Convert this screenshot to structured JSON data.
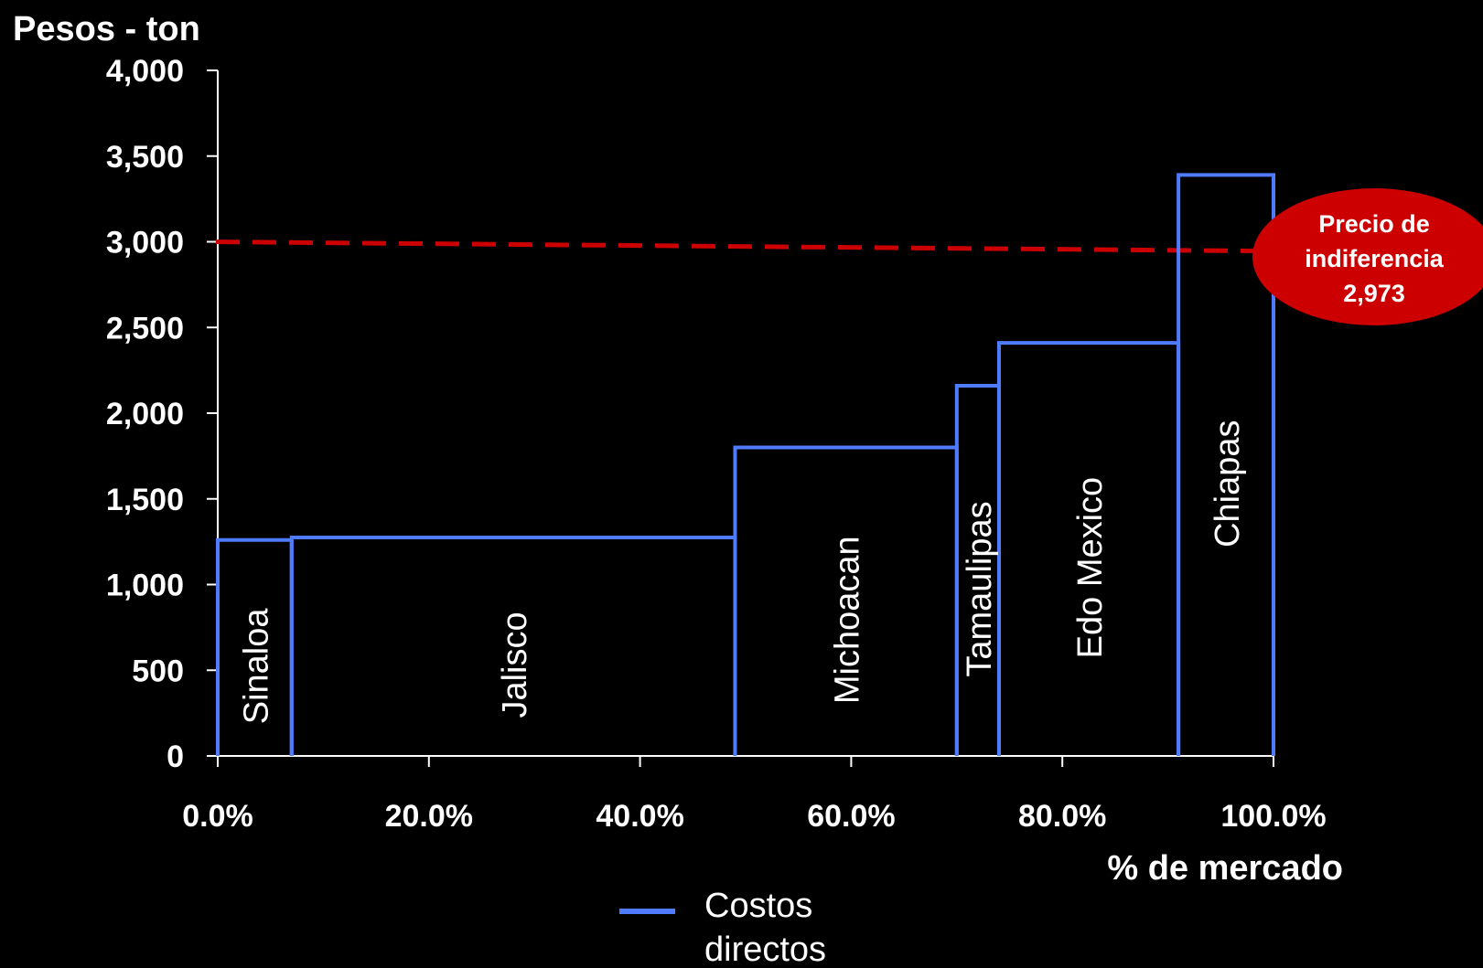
{
  "chart_data": {
    "type": "step",
    "ylabel": "Pesos - ton",
    "xlabel": "% de mercado",
    "ylim": [
      0,
      4000
    ],
    "xlim": [
      0,
      100
    ],
    "y_ticks": [
      {
        "value": 0,
        "label": "0"
      },
      {
        "value": 500,
        "label": "500"
      },
      {
        "value": 1000,
        "label": "1,000"
      },
      {
        "value": 1500,
        "label": "1,500"
      },
      {
        "value": 2000,
        "label": "2,000"
      },
      {
        "value": 2500,
        "label": "2,500"
      },
      {
        "value": 3000,
        "label": "3,000"
      },
      {
        "value": 3500,
        "label": "3,500"
      },
      {
        "value": 4000,
        "label": "4,000"
      }
    ],
    "x_ticks": [
      {
        "value": 0,
        "label": "0.0%"
      },
      {
        "value": 20,
        "label": "20.0%"
      },
      {
        "value": 40,
        "label": "40.0%"
      },
      {
        "value": 60,
        "label": "60.0%"
      },
      {
        "value": 80,
        "label": "80.0%"
      },
      {
        "value": 100,
        "label": "100.0%"
      }
    ],
    "series": [
      {
        "name": "Costos directos",
        "color": "#4f7cff",
        "segments": [
          {
            "label": "Sinaloa",
            "x_start": 0,
            "x_end": 7,
            "value": 1260
          },
          {
            "label": "Jalisco",
            "x_start": 7,
            "x_end": 49,
            "value": 1275
          },
          {
            "label": "Michoacan",
            "x_start": 49,
            "x_end": 70,
            "value": 1800
          },
          {
            "label": "Tamaulipas",
            "x_start": 70,
            "x_end": 74,
            "value": 2160
          },
          {
            "label": "Edo Mexico",
            "x_start": 74,
            "x_end": 91,
            "value": 2410
          },
          {
            "label": "Chiapas",
            "x_start": 91,
            "x_end": 100,
            "value": 3390
          }
        ]
      }
    ],
    "reference_line": {
      "value": 2973,
      "color": "#cc0000",
      "style": "dashed"
    },
    "annotation": {
      "line1": "Precio de",
      "line2": "indiferencia",
      "line3": "2,973",
      "color": "#cc0000"
    },
    "legend": {
      "position": "bottom-center",
      "line1": "Costos",
      "line2": "directos"
    }
  }
}
